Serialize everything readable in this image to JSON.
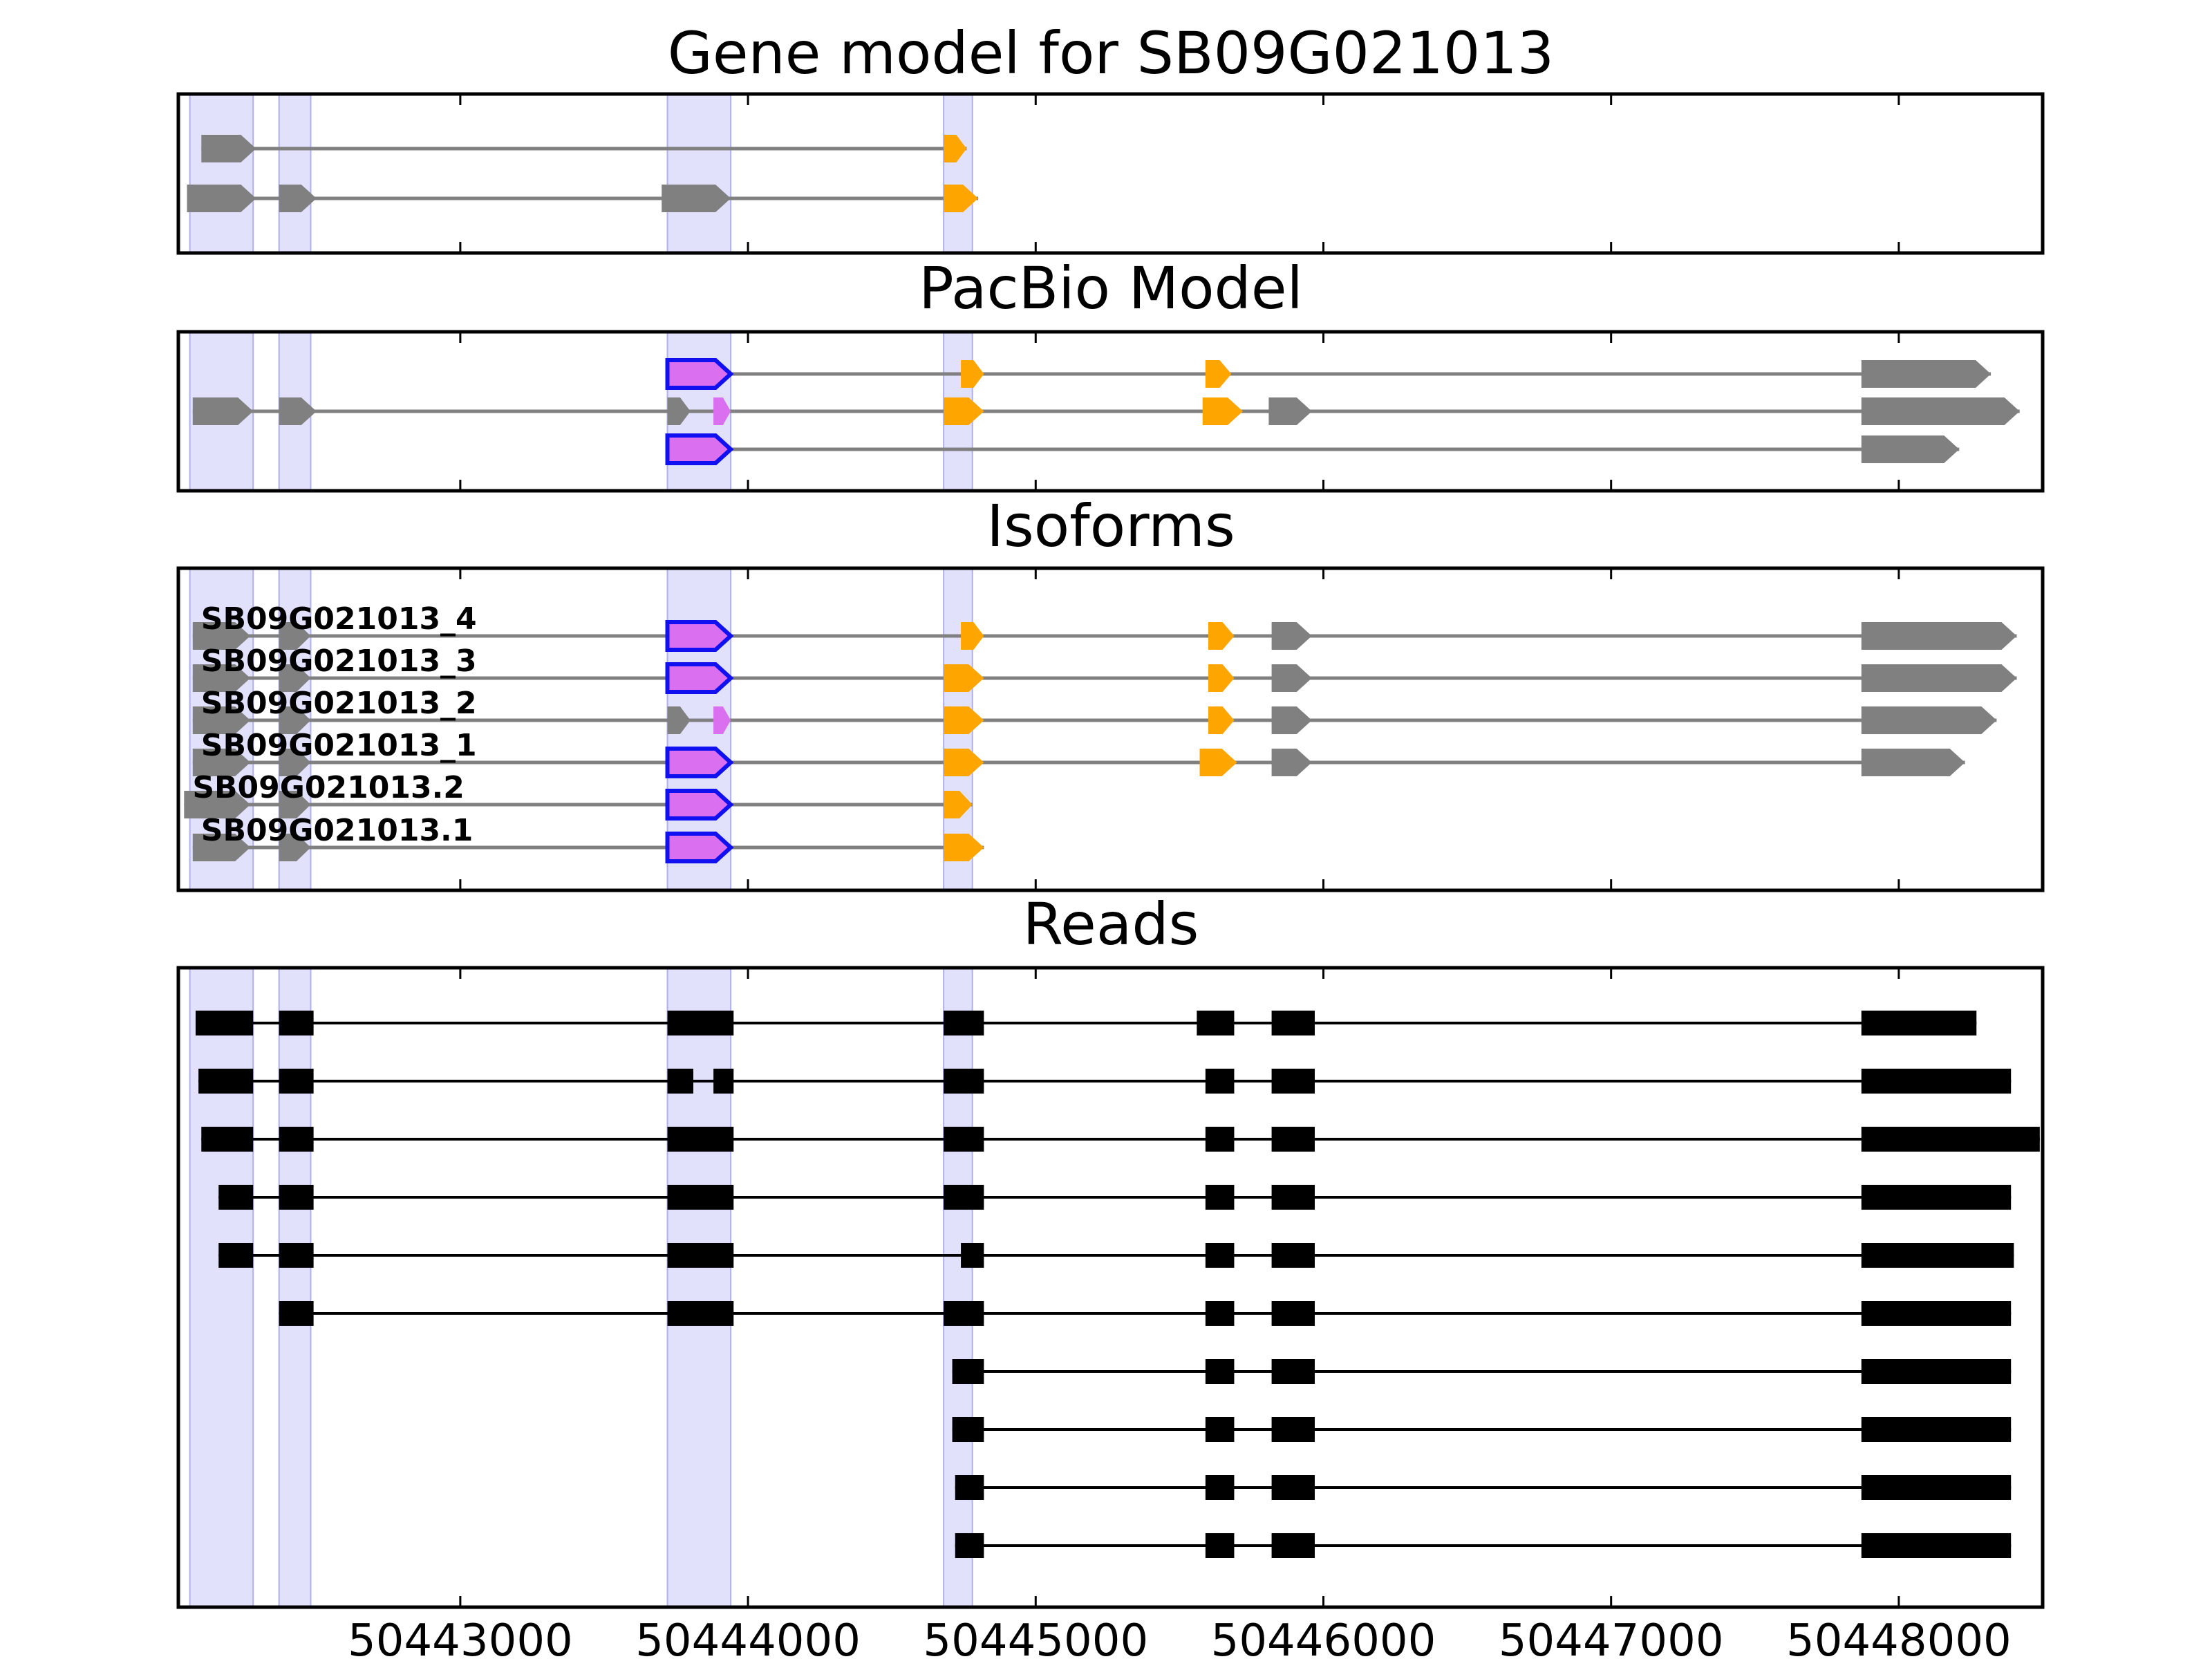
{
  "colors": {
    "gray": "#808080",
    "orange": "#FFA500",
    "violet": "#DA70F0",
    "blue": "#1010F0",
    "shade": "#C8C8FA",
    "black": "#000000"
  },
  "chart_data": {
    "type": "gene-structure",
    "xlim": [
      50442020,
      50448500
    ],
    "xticks": [
      50443000,
      50444000,
      50445000,
      50446000,
      50447000,
      50448000
    ],
    "highlight_regions": [
      [
        50442060,
        50442280
      ],
      [
        50442370,
        50442480
      ],
      [
        50443720,
        50443940
      ],
      [
        50444680,
        50444780
      ]
    ],
    "panels": [
      {
        "key": "gene_model",
        "title": "Gene model for SB09G021013",
        "transcripts": [
          {
            "label": "",
            "exons": [
              {
                "start": 50442100,
                "end": 50442290,
                "color": "gray"
              },
              {
                "start": 50444680,
                "end": 50444760,
                "color": "orange"
              }
            ]
          },
          {
            "label": "",
            "exons": [
              {
                "start": 50442050,
                "end": 50442290,
                "color": "gray"
              },
              {
                "start": 50442370,
                "end": 50442500,
                "color": "gray"
              },
              {
                "start": 50443700,
                "end": 50443940,
                "color": "gray"
              },
              {
                "start": 50444680,
                "end": 50444800,
                "color": "orange"
              }
            ]
          }
        ]
      },
      {
        "key": "pacbio_model",
        "title": "PacBio Model",
        "transcripts": [
          {
            "label": "",
            "exons": [
              {
                "start": 50443720,
                "end": 50443940,
                "color": "violet",
                "outline": "blue"
              },
              {
                "start": 50444740,
                "end": 50444820,
                "color": "orange"
              },
              {
                "start": 50445590,
                "end": 50445680,
                "color": "orange"
              },
              {
                "start": 50447870,
                "end": 50448320,
                "color": "gray"
              }
            ]
          },
          {
            "label": "",
            "exons": [
              {
                "start": 50442070,
                "end": 50442280,
                "color": "gray"
              },
              {
                "start": 50442370,
                "end": 50442500,
                "color": "gray"
              },
              {
                "start": 50443720,
                "end": 50443800,
                "color": "gray"
              },
              {
                "start": 50443880,
                "end": 50443940,
                "color": "violet"
              },
              {
                "start": 50444680,
                "end": 50444820,
                "color": "orange"
              },
              {
                "start": 50445580,
                "end": 50445720,
                "color": "orange"
              },
              {
                "start": 50445810,
                "end": 50445960,
                "color": "gray"
              },
              {
                "start": 50447870,
                "end": 50448420,
                "color": "gray"
              }
            ]
          },
          {
            "label": "",
            "exons": [
              {
                "start": 50443720,
                "end": 50443940,
                "color": "violet",
                "outline": "blue"
              },
              {
                "start": 50447870,
                "end": 50448210,
                "color": "gray"
              }
            ]
          }
        ]
      },
      {
        "key": "isoforms",
        "title": "Isoforms",
        "transcripts": [
          {
            "label": "SB09G021013_4",
            "exons": [
              {
                "start": 50442070,
                "end": 50442270,
                "color": "gray"
              },
              {
                "start": 50442370,
                "end": 50442480,
                "color": "gray"
              },
              {
                "start": 50443720,
                "end": 50443940,
                "color": "violet",
                "outline": "blue"
              },
              {
                "start": 50444740,
                "end": 50444820,
                "color": "orange"
              },
              {
                "start": 50445600,
                "end": 50445690,
                "color": "orange"
              },
              {
                "start": 50445820,
                "end": 50445960,
                "color": "gray"
              },
              {
                "start": 50447870,
                "end": 50448410,
                "color": "gray"
              }
            ]
          },
          {
            "label": "SB09G021013_3",
            "exons": [
              {
                "start": 50442070,
                "end": 50442270,
                "color": "gray"
              },
              {
                "start": 50442370,
                "end": 50442480,
                "color": "gray"
              },
              {
                "start": 50443720,
                "end": 50443940,
                "color": "violet",
                "outline": "blue"
              },
              {
                "start": 50444680,
                "end": 50444820,
                "color": "orange"
              },
              {
                "start": 50445600,
                "end": 50445690,
                "color": "orange"
              },
              {
                "start": 50445820,
                "end": 50445960,
                "color": "gray"
              },
              {
                "start": 50447870,
                "end": 50448410,
                "color": "gray"
              }
            ]
          },
          {
            "label": "SB09G021013_2",
            "exons": [
              {
                "start": 50442070,
                "end": 50442270,
                "color": "gray"
              },
              {
                "start": 50442370,
                "end": 50442480,
                "color": "gray"
              },
              {
                "start": 50443720,
                "end": 50443800,
                "color": "gray"
              },
              {
                "start": 50443880,
                "end": 50443940,
                "color": "violet"
              },
              {
                "start": 50444680,
                "end": 50444820,
                "color": "orange"
              },
              {
                "start": 50445600,
                "end": 50445690,
                "color": "orange"
              },
              {
                "start": 50445820,
                "end": 50445960,
                "color": "gray"
              },
              {
                "start": 50447870,
                "end": 50448340,
                "color": "gray"
              }
            ]
          },
          {
            "label": "SB09G021013_1",
            "exons": [
              {
                "start": 50442070,
                "end": 50442270,
                "color": "gray"
              },
              {
                "start": 50442370,
                "end": 50442480,
                "color": "gray"
              },
              {
                "start": 50443720,
                "end": 50443940,
                "color": "violet",
                "outline": "blue"
              },
              {
                "start": 50444680,
                "end": 50444820,
                "color": "orange"
              },
              {
                "start": 50445570,
                "end": 50445700,
                "color": "orange"
              },
              {
                "start": 50445820,
                "end": 50445960,
                "color": "gray"
              },
              {
                "start": 50447870,
                "end": 50448230,
                "color": "gray"
              }
            ]
          },
          {
            "label": "SB09G021013.2",
            "exons": [
              {
                "start": 50442040,
                "end": 50442270,
                "color": "gray"
              },
              {
                "start": 50442370,
                "end": 50442480,
                "color": "gray"
              },
              {
                "start": 50443720,
                "end": 50443940,
                "color": "violet",
                "outline": "blue"
              },
              {
                "start": 50444680,
                "end": 50444780,
                "color": "orange"
              }
            ]
          },
          {
            "label": "SB09G021013.1",
            "exons": [
              {
                "start": 50442070,
                "end": 50442270,
                "color": "gray"
              },
              {
                "start": 50442370,
                "end": 50442480,
                "color": "gray"
              },
              {
                "start": 50443720,
                "end": 50443940,
                "color": "violet",
                "outline": "blue"
              },
              {
                "start": 50444680,
                "end": 50444820,
                "color": "orange"
              }
            ]
          }
        ]
      },
      {
        "key": "reads",
        "title": "Reads",
        "transcripts": [
          {
            "label": "",
            "exons": [
              {
                "start": 50442080,
                "end": 50442280,
                "color": "black"
              },
              {
                "start": 50442370,
                "end": 50442490,
                "color": "black"
              },
              {
                "start": 50443720,
                "end": 50443950,
                "color": "black"
              },
              {
                "start": 50444680,
                "end": 50444820,
                "color": "black"
              },
              {
                "start": 50445560,
                "end": 50445690,
                "color": "black"
              },
              {
                "start": 50445820,
                "end": 50445970,
                "color": "black"
              },
              {
                "start": 50447870,
                "end": 50448270,
                "color": "black"
              }
            ]
          },
          {
            "label": "",
            "exons": [
              {
                "start": 50442090,
                "end": 50442280,
                "color": "black"
              },
              {
                "start": 50442370,
                "end": 50442490,
                "color": "black"
              },
              {
                "start": 50443720,
                "end": 50443810,
                "color": "black"
              },
              {
                "start": 50443880,
                "end": 50443950,
                "color": "black"
              },
              {
                "start": 50444680,
                "end": 50444820,
                "color": "black"
              },
              {
                "start": 50445590,
                "end": 50445690,
                "color": "black"
              },
              {
                "start": 50445820,
                "end": 50445970,
                "color": "black"
              },
              {
                "start": 50447870,
                "end": 50448390,
                "color": "black"
              }
            ]
          },
          {
            "label": "",
            "exons": [
              {
                "start": 50442100,
                "end": 50442280,
                "color": "black"
              },
              {
                "start": 50442370,
                "end": 50442490,
                "color": "black"
              },
              {
                "start": 50443720,
                "end": 50443950,
                "color": "black"
              },
              {
                "start": 50444680,
                "end": 50444820,
                "color": "black"
              },
              {
                "start": 50445590,
                "end": 50445690,
                "color": "black"
              },
              {
                "start": 50445820,
                "end": 50445970,
                "color": "black"
              },
              {
                "start": 50447870,
                "end": 50448490,
                "color": "black"
              }
            ]
          },
          {
            "label": "",
            "exons": [
              {
                "start": 50442160,
                "end": 50442280,
                "color": "black"
              },
              {
                "start": 50442370,
                "end": 50442490,
                "color": "black"
              },
              {
                "start": 50443720,
                "end": 50443950,
                "color": "black"
              },
              {
                "start": 50444680,
                "end": 50444820,
                "color": "black"
              },
              {
                "start": 50445590,
                "end": 50445690,
                "color": "black"
              },
              {
                "start": 50445820,
                "end": 50445970,
                "color": "black"
              },
              {
                "start": 50447870,
                "end": 50448390,
                "color": "black"
              }
            ]
          },
          {
            "label": "",
            "exons": [
              {
                "start": 50442160,
                "end": 50442280,
                "color": "black"
              },
              {
                "start": 50442370,
                "end": 50442490,
                "color": "black"
              },
              {
                "start": 50443720,
                "end": 50443950,
                "color": "black"
              },
              {
                "start": 50444740,
                "end": 50444820,
                "color": "black"
              },
              {
                "start": 50445590,
                "end": 50445690,
                "color": "black"
              },
              {
                "start": 50445820,
                "end": 50445970,
                "color": "black"
              },
              {
                "start": 50447870,
                "end": 50448400,
                "color": "black"
              }
            ]
          },
          {
            "label": "",
            "exons": [
              {
                "start": 50442370,
                "end": 50442490,
                "color": "black"
              },
              {
                "start": 50443720,
                "end": 50443950,
                "color": "black"
              },
              {
                "start": 50444680,
                "end": 50444820,
                "color": "black"
              },
              {
                "start": 50445590,
                "end": 50445690,
                "color": "black"
              },
              {
                "start": 50445820,
                "end": 50445970,
                "color": "black"
              },
              {
                "start": 50447870,
                "end": 50448390,
                "color": "black"
              }
            ]
          },
          {
            "label": "",
            "exons": [
              {
                "start": 50444710,
                "end": 50444820,
                "color": "black"
              },
              {
                "start": 50445590,
                "end": 50445690,
                "color": "black"
              },
              {
                "start": 50445820,
                "end": 50445970,
                "color": "black"
              },
              {
                "start": 50447870,
                "end": 50448390,
                "color": "black"
              }
            ]
          },
          {
            "label": "",
            "exons": [
              {
                "start": 50444710,
                "end": 50444820,
                "color": "black"
              },
              {
                "start": 50445590,
                "end": 50445690,
                "color": "black"
              },
              {
                "start": 50445820,
                "end": 50445970,
                "color": "black"
              },
              {
                "start": 50447870,
                "end": 50448390,
                "color": "black"
              }
            ]
          },
          {
            "label": "",
            "exons": [
              {
                "start": 50444720,
                "end": 50444820,
                "color": "black"
              },
              {
                "start": 50445590,
                "end": 50445690,
                "color": "black"
              },
              {
                "start": 50445820,
                "end": 50445970,
                "color": "black"
              },
              {
                "start": 50447870,
                "end": 50448390,
                "color": "black"
              }
            ]
          },
          {
            "label": "",
            "exons": [
              {
                "start": 50444720,
                "end": 50444820,
                "color": "black"
              },
              {
                "start": 50445590,
                "end": 50445690,
                "color": "black"
              },
              {
                "start": 50445820,
                "end": 50445970,
                "color": "black"
              },
              {
                "start": 50447870,
                "end": 50448390,
                "color": "black"
              }
            ]
          }
        ]
      }
    ]
  }
}
